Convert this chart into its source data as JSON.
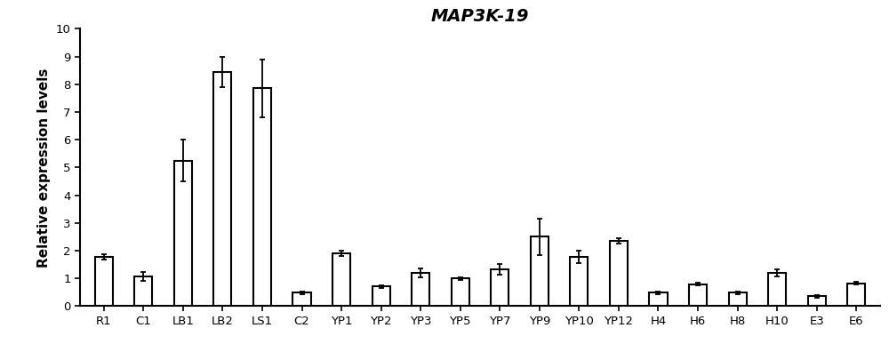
{
  "categories": [
    "R1",
    "C1",
    "LB1",
    "LB2",
    "LS1",
    "C2",
    "YP1",
    "YP2",
    "YP3",
    "YP5",
    "YP7",
    "YP9",
    "YP10",
    "YP12",
    "H4",
    "H6",
    "H8",
    "H10",
    "E3",
    "E6"
  ],
  "values": [
    1.78,
    1.07,
    5.25,
    8.45,
    7.85,
    0.48,
    1.9,
    0.7,
    1.2,
    1.0,
    1.32,
    2.5,
    1.78,
    2.35,
    0.48,
    0.78,
    0.48,
    1.2,
    0.35,
    0.82
  ],
  "errors": [
    0.1,
    0.15,
    0.75,
    0.55,
    1.05,
    0.05,
    0.1,
    0.05,
    0.15,
    0.05,
    0.18,
    0.65,
    0.22,
    0.1,
    0.05,
    0.05,
    0.05,
    0.12,
    0.04,
    0.05
  ],
  "title": "MAP3K-19",
  "ylabel": "Relative expression levels",
  "ylim": [
    0,
    10
  ],
  "yticks": [
    0,
    1,
    2,
    3,
    4,
    5,
    6,
    7,
    8,
    9,
    10
  ],
  "bar_color": "#ffffff",
  "bar_edgecolor": "#000000",
  "bar_width": 0.45,
  "title_fontsize": 14,
  "label_fontsize": 11,
  "tick_fontsize": 9.5
}
